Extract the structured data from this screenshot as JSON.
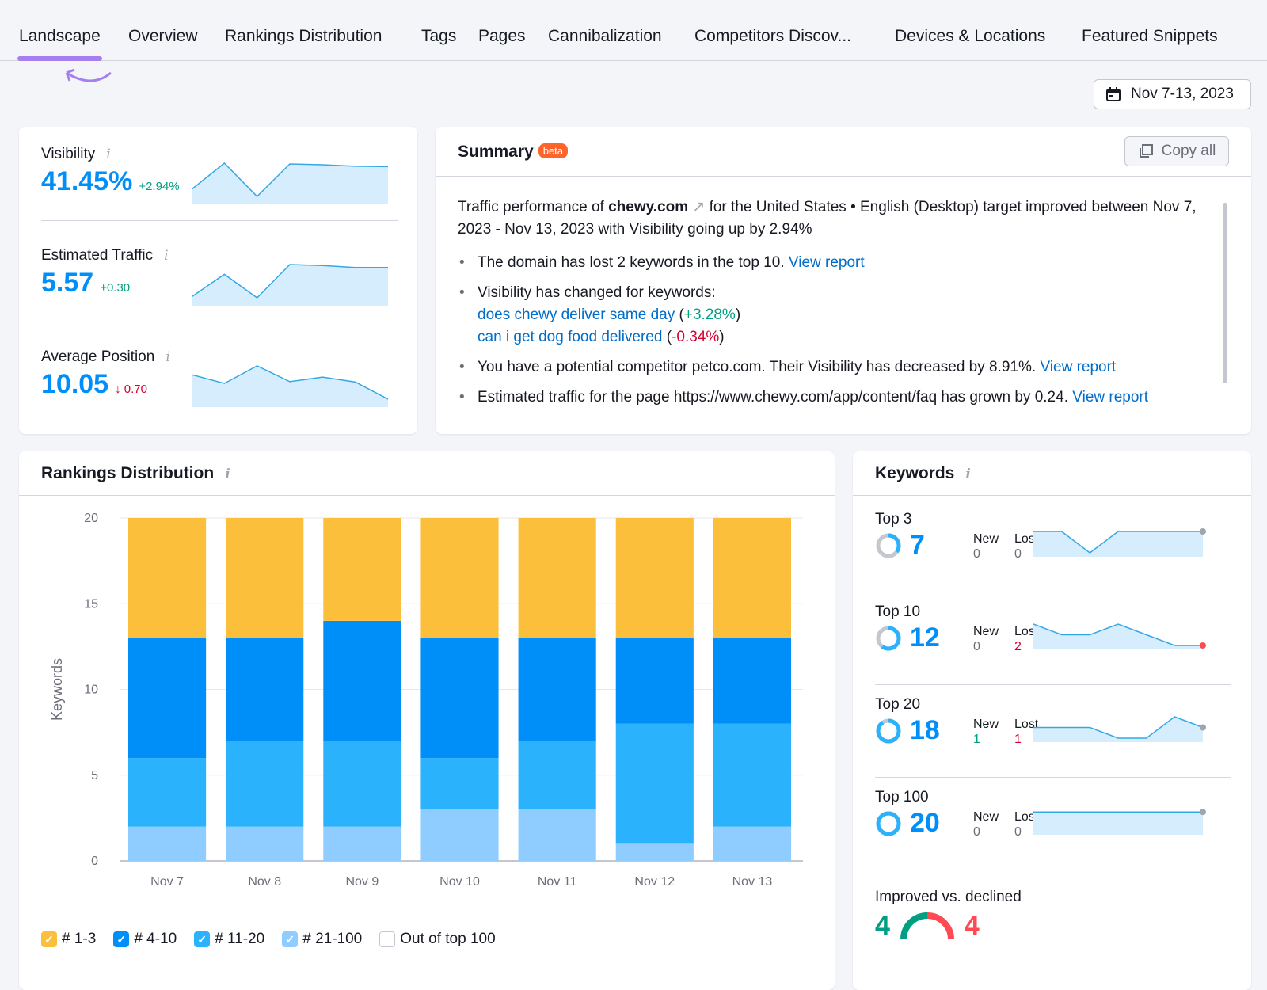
{
  "tabs": [
    {
      "label": "Landscape",
      "active": true
    },
    {
      "label": "Overview"
    },
    {
      "label": "Rankings Distribution"
    },
    {
      "label": "Tags"
    },
    {
      "label": "Pages"
    },
    {
      "label": "Cannibalization"
    },
    {
      "label": "Competitors Discov..."
    },
    {
      "label": "Devices & Locations"
    },
    {
      "label": "Featured Snippets"
    }
  ],
  "date_range": "Nov 7-13, 2023",
  "metrics": [
    {
      "label": "Visibility",
      "value": "41.45%",
      "delta": "+2.94%",
      "trend": "up",
      "spark": [
        38.51,
        41.9,
        37.6,
        41.8,
        41.7,
        41.5,
        41.45
      ]
    },
    {
      "label": "Estimated Traffic",
      "value": "5.57",
      "delta": "+0.30",
      "trend": "up",
      "spark": [
        5.27,
        5.5,
        5.26,
        5.6,
        5.59,
        5.57,
        5.57
      ]
    },
    {
      "label": "Average Position",
      "value": "10.05",
      "delta": "↓ 0.70",
      "trend": "down",
      "spark": [
        10.75,
        10.5,
        11.0,
        10.55,
        10.68,
        10.54,
        10.05
      ]
    }
  ],
  "summary": {
    "title": "Summary",
    "badge": "beta",
    "copy_label": "Copy all",
    "intro_a": "Traffic performance of ",
    "domain": "chewy.com",
    "intro_b": " for the United States • English (Desktop) target improved between Nov 7, 2023 - Nov 13, 2023 with Visibility going up by 2.94%",
    "b1": "The domain has lost 2 keywords in the top 10. ",
    "link": "View report",
    "b2": "Visibility has changed for keywords:",
    "kw1": "does chewy deliver same day",
    "kw1d": "+3.28%",
    "kw2": "can i get dog food delivered",
    "kw2d": "-0.34%",
    "b3": "You have a potential competitor petco.com. Their Visibility has decreased by 8.91%. ",
    "b4": "Estimated traffic for the page https://www.chewy.com/app/content/faq has grown by 0.24. "
  },
  "rankings": {
    "title": "Rankings Distribution"
  },
  "chart_data": {
    "type": "bar",
    "stacked": true,
    "categories": [
      "Nov 7",
      "Nov 8",
      "Nov 9",
      "Nov 10",
      "Nov 11",
      "Nov 12",
      "Nov 13"
    ],
    "ylabel": "Keywords",
    "ylim": [
      0,
      20
    ],
    "yticks": [
      0,
      5,
      10,
      15,
      20
    ],
    "grid": true,
    "legend": "bottom-left",
    "series": [
      {
        "name": "# 21-100",
        "color": "#8fccff",
        "values": [
          2,
          2,
          2,
          3,
          3,
          1,
          2
        ],
        "checked": true
      },
      {
        "name": "# 11-20",
        "color": "#2bb2fc",
        "values": [
          4,
          5,
          5,
          3,
          4,
          7,
          6
        ],
        "checked": true
      },
      {
        "name": "# 4-10",
        "color": "#008ff8",
        "values": [
          7,
          6,
          7,
          7,
          6,
          5,
          5
        ],
        "checked": true
      },
      {
        "name": "# 1-3",
        "color": "#fbbf3c",
        "values": [
          7,
          7,
          6,
          7,
          7,
          7,
          7
        ],
        "checked": true
      }
    ],
    "legend_order": [
      "# 1-3",
      "# 4-10",
      "# 11-20",
      "# 21-100",
      "Out of top 100"
    ]
  },
  "keywords": {
    "title": "Keywords",
    "new_label": "New",
    "lost_label": "Lost",
    "rows": [
      {
        "label": "Top 3",
        "value": "7",
        "share": 0.35,
        "new": "0",
        "lost": "0",
        "spark": [
          7,
          7,
          6,
          7,
          7,
          7,
          7
        ],
        "end": "#a0a4ad"
      },
      {
        "label": "Top 10",
        "value": "12",
        "share": 0.6,
        "new": "0",
        "lost": "2",
        "spark": [
          14,
          13,
          13,
          14,
          13,
          12,
          12
        ],
        "end": "#ff4953"
      },
      {
        "label": "Top 20",
        "value": "18",
        "share": 0.9,
        "new": "1",
        "lost": "1",
        "spark": [
          18,
          18,
          18,
          17,
          17,
          19,
          18
        ],
        "end": "#a0a4ad"
      },
      {
        "label": "Top 100",
        "value": "20",
        "share": 1,
        "new": "0",
        "lost": "0",
        "spark": [
          20,
          20,
          20,
          20,
          20,
          20,
          20
        ],
        "end": "#a0a4ad"
      }
    ],
    "improved_label": "Improved vs. declined",
    "improved": "4",
    "declined": "4"
  }
}
